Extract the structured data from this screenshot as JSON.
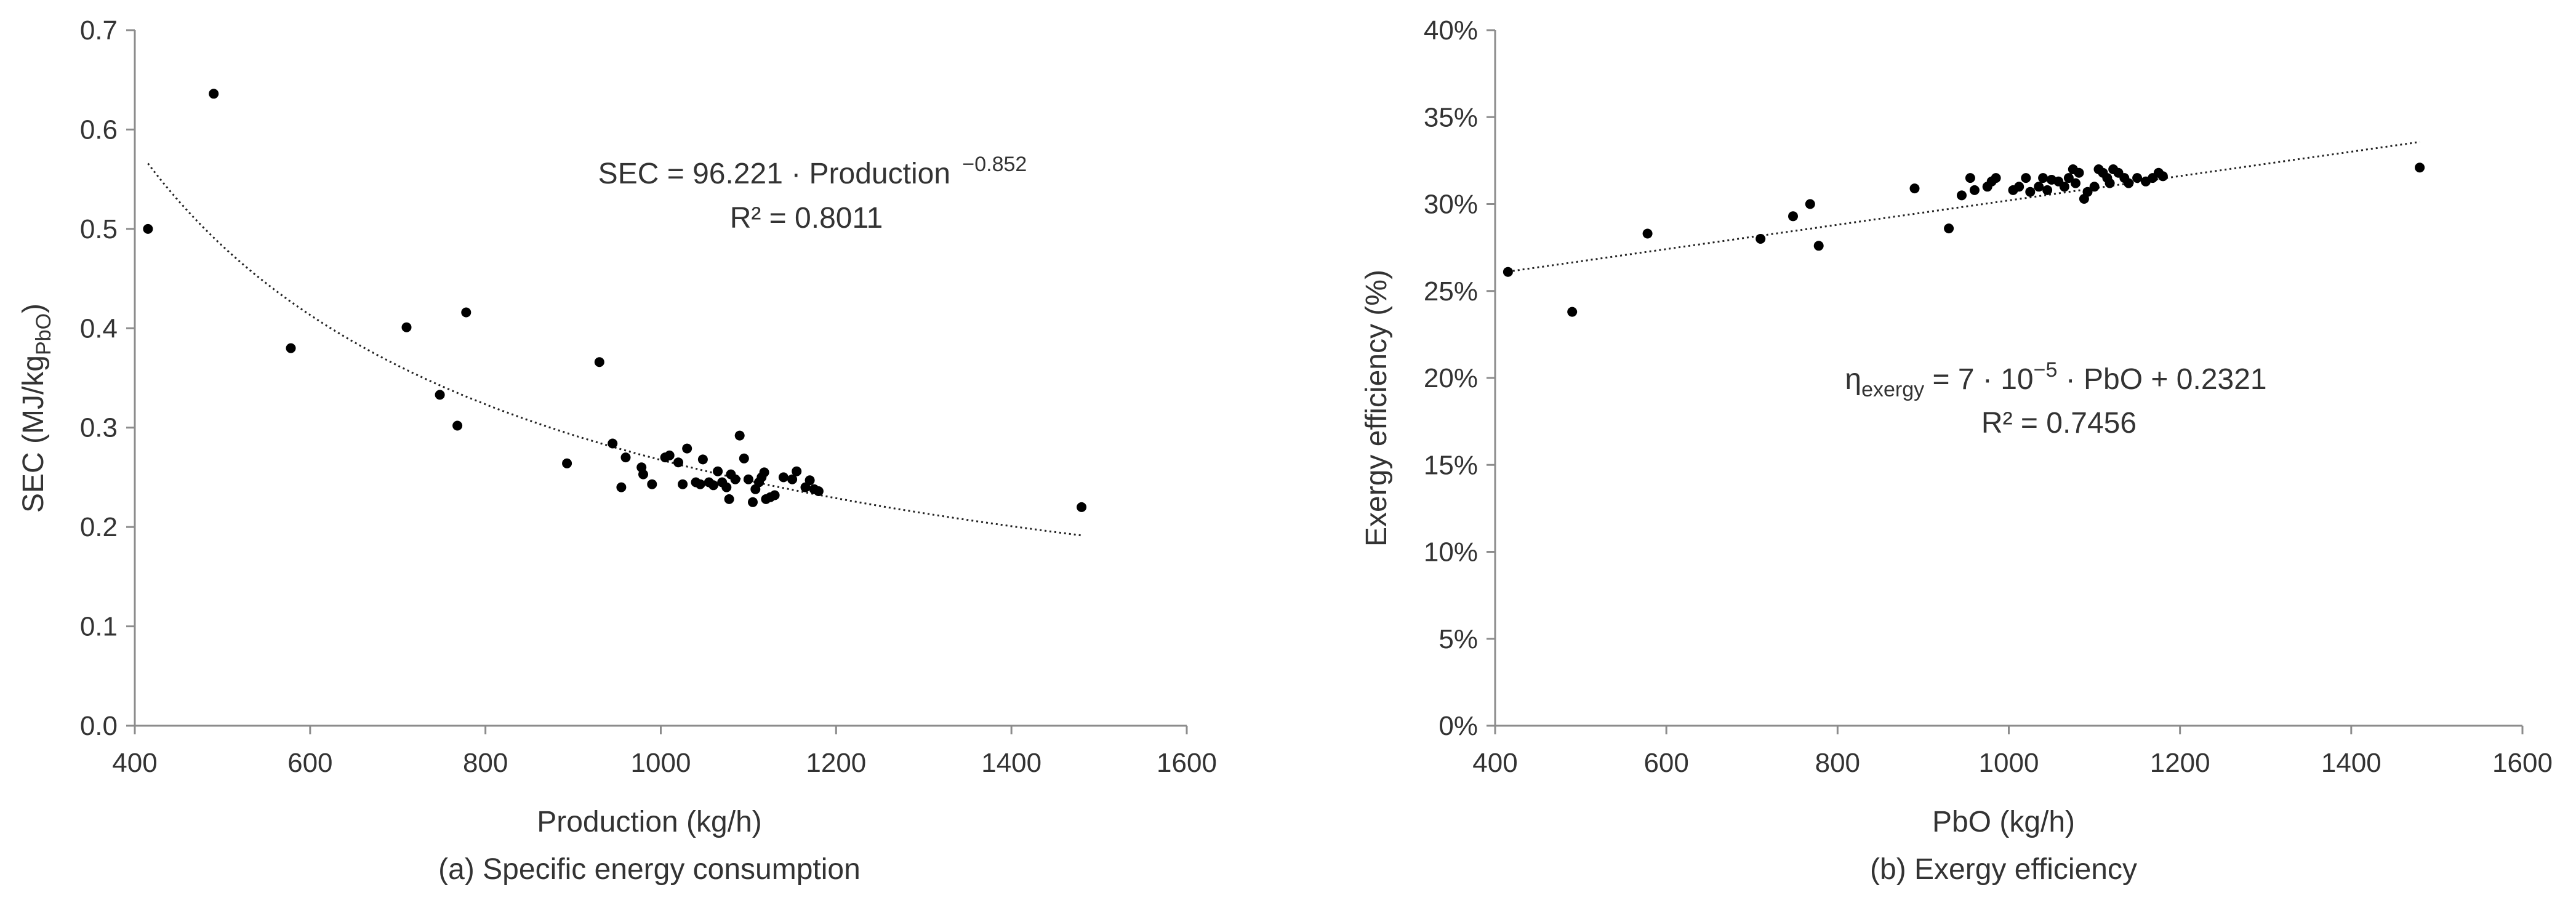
{
  "charts": [
    {
      "caption": "(a) Specific energy consumption",
      "xlabel": "Production (kg/h)",
      "ylabel_main": "SEC (MJ/kg",
      "ylabel_sub": "PbO",
      "ylabel_end": ")",
      "equation_main": "SEC = 96.221 · Production",
      "equation_exp": "−0.852",
      "r2_label": "R² = 0.8011",
      "xticks": [
        "400",
        "600",
        "800",
        "1000",
        "1200",
        "1400",
        "1600"
      ],
      "yticks": [
        "0.0",
        "0.1",
        "0.2",
        "0.3",
        "0.4",
        "0.5",
        "0.6",
        "0.7"
      ]
    },
    {
      "caption": "(b) Exergy efficiency",
      "xlabel": "PbO (kg/h)",
      "ylabel": "Exergy efficiency (%)",
      "equation_eta": "η",
      "equation_sub": "exergy",
      "equation_mid": " = 7 · 10",
      "equation_exp": "−5",
      "equation_end": " · PbO  + 0.2321",
      "r2_label": "R² = 0.7456",
      "xticks": [
        "400",
        "600",
        "800",
        "1000",
        "1200",
        "1400",
        "1600"
      ],
      "yticks": [
        "0%",
        "5%",
        "10%",
        "15%",
        "20%",
        "25%",
        "30%",
        "35%",
        "40%"
      ]
    }
  ],
  "chart_data": [
    {
      "type": "scatter",
      "xlim": [
        400,
        1600
      ],
      "ylim": [
        0,
        0.7
      ],
      "grid": false,
      "trendline": {
        "kind": "power",
        "a": 96.221,
        "b": -0.852,
        "x_range": [
          415,
          1480
        ]
      },
      "points": [
        [
          415,
          0.5
        ],
        [
          490,
          0.636
        ],
        [
          578,
          0.38
        ],
        [
          710,
          0.401
        ],
        [
          748,
          0.333
        ],
        [
          768,
          0.302
        ],
        [
          778,
          0.416
        ],
        [
          893,
          0.264
        ],
        [
          930,
          0.366
        ],
        [
          945,
          0.284
        ],
        [
          955,
          0.24
        ],
        [
          960,
          0.27
        ],
        [
          978,
          0.26
        ],
        [
          980,
          0.253
        ],
        [
          990,
          0.243
        ],
        [
          1005,
          0.27
        ],
        [
          1010,
          0.272
        ],
        [
          1020,
          0.265
        ],
        [
          1025,
          0.243
        ],
        [
          1030,
          0.279
        ],
        [
          1040,
          0.245
        ],
        [
          1045,
          0.243
        ],
        [
          1048,
          0.268
        ],
        [
          1055,
          0.245
        ],
        [
          1060,
          0.242
        ],
        [
          1065,
          0.256
        ],
        [
          1070,
          0.245
        ],
        [
          1075,
          0.24
        ],
        [
          1078,
          0.228
        ],
        [
          1080,
          0.253
        ],
        [
          1085,
          0.248
        ],
        [
          1090,
          0.292
        ],
        [
          1095,
          0.269
        ],
        [
          1100,
          0.248
        ],
        [
          1105,
          0.225
        ],
        [
          1108,
          0.238
        ],
        [
          1112,
          0.245
        ],
        [
          1115,
          0.25
        ],
        [
          1118,
          0.255
        ],
        [
          1120,
          0.228
        ],
        [
          1125,
          0.23
        ],
        [
          1130,
          0.232
        ],
        [
          1140,
          0.25
        ],
        [
          1150,
          0.248
        ],
        [
          1155,
          0.256
        ],
        [
          1165,
          0.24
        ],
        [
          1170,
          0.247
        ],
        [
          1175,
          0.238
        ],
        [
          1180,
          0.236
        ],
        [
          1480,
          0.22
        ]
      ]
    },
    {
      "type": "scatter",
      "xlim": [
        400,
        1600
      ],
      "ylim": [
        0,
        0.4
      ],
      "grid": false,
      "trendline": {
        "kind": "linear",
        "slope": 7e-05,
        "intercept": 0.2321,
        "x_range": [
          415,
          1480
        ]
      },
      "points": [
        [
          415,
          0.261
        ],
        [
          490,
          0.238
        ],
        [
          578,
          0.283
        ],
        [
          710,
          0.28
        ],
        [
          748,
          0.293
        ],
        [
          768,
          0.3
        ],
        [
          778,
          0.276
        ],
        [
          890,
          0.309
        ],
        [
          930,
          0.286
        ],
        [
          945,
          0.305
        ],
        [
          955,
          0.315
        ],
        [
          960,
          0.308
        ],
        [
          975,
          0.31
        ],
        [
          980,
          0.313
        ],
        [
          985,
          0.315
        ],
        [
          1005,
          0.308
        ],
        [
          1012,
          0.31
        ],
        [
          1020,
          0.315
        ],
        [
          1025,
          0.307
        ],
        [
          1035,
          0.31
        ],
        [
          1040,
          0.315
        ],
        [
          1045,
          0.308
        ],
        [
          1050,
          0.314
        ],
        [
          1058,
          0.313
        ],
        [
          1065,
          0.31
        ],
        [
          1070,
          0.315
        ],
        [
          1075,
          0.32
        ],
        [
          1078,
          0.312
        ],
        [
          1082,
          0.318
        ],
        [
          1088,
          0.303
        ],
        [
          1092,
          0.307
        ],
        [
          1100,
          0.31
        ],
        [
          1105,
          0.32
        ],
        [
          1110,
          0.318
        ],
        [
          1115,
          0.315
        ],
        [
          1118,
          0.312
        ],
        [
          1122,
          0.32
        ],
        [
          1128,
          0.318
        ],
        [
          1135,
          0.315
        ],
        [
          1140,
          0.312
        ],
        [
          1150,
          0.315
        ],
        [
          1160,
          0.313
        ],
        [
          1168,
          0.315
        ],
        [
          1175,
          0.318
        ],
        [
          1180,
          0.316
        ],
        [
          1480,
          0.321
        ]
      ]
    }
  ]
}
